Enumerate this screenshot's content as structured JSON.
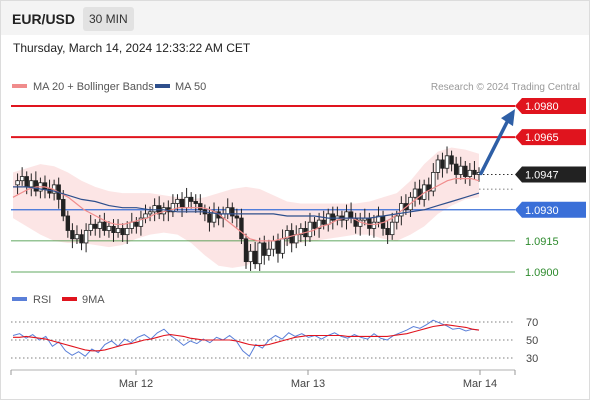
{
  "header": {
    "symbol": "EUR/USD",
    "timeframe": "30 MIN",
    "timestamp": "Thursday, March 14, 2024 12:33:22 AM CET"
  },
  "legend": {
    "items": [
      {
        "label": "MA 20 + Bollinger Bands",
        "color": "#f08c8c"
      },
      {
        "label": "MA 50",
        "color": "#2e4f8c"
      }
    ],
    "source": "Research © 2024 Trading Central"
  },
  "chart_data": [
    {
      "type": "candlestick",
      "title": "",
      "x_ticks": [
        "Mar 12",
        "Mar 13",
        "Mar 14"
      ],
      "ylim": [
        1.0895,
        1.0985
      ],
      "current_price": "1.0947",
      "levels": [
        {
          "value": "1.0980",
          "kind": "resistance",
          "color": "#e0141e"
        },
        {
          "value": "1.0965",
          "kind": "resistance",
          "color": "#e0141e"
        },
        {
          "value": "1.0930",
          "kind": "pivot",
          "color": "#3a6fd8"
        },
        {
          "value": "1.0915",
          "kind": "support",
          "color": "#2e8b2e"
        },
        {
          "value": "1.0900",
          "kind": "support",
          "color": "#2e8b2e"
        }
      ],
      "prices": [
        1.0942,
        1.0944,
        1.0946,
        1.0941,
        1.0944,
        1.0939,
        1.0943,
        1.094,
        1.0938,
        1.0942,
        1.0935,
        1.0927,
        1.092,
        1.0916,
        1.0918,
        1.0914,
        1.092,
        1.0923,
        1.0921,
        1.0924,
        1.092,
        1.0922,
        1.0919,
        1.0921,
        1.0918,
        1.0921,
        1.0924,
        1.0922,
        1.0926,
        1.0928,
        1.0929,
        1.0932,
        1.0928,
        1.0931,
        1.0929,
        1.0933,
        1.0935,
        1.0931,
        1.0936,
        1.0934,
        1.0933,
        1.093,
        1.0928,
        1.0924,
        1.0929,
        1.0926,
        1.0928,
        1.0931,
        1.0927,
        1.0926,
        1.0916,
        1.0905,
        1.091,
        1.0904,
        1.0914,
        1.0908,
        1.0911,
        1.0915,
        1.0909,
        1.0916,
        1.092,
        1.0914,
        1.0918,
        1.0921,
        1.0917,
        1.0924,
        1.0921,
        1.0925,
        1.0923,
        1.0928,
        1.0925,
        1.0927,
        1.0925,
        1.0929,
        1.0926,
        1.0922,
        1.0925,
        1.0926,
        1.0921,
        1.0924,
        1.0927,
        1.0921,
        1.0918,
        1.0924,
        1.0927,
        1.0933,
        1.093,
        1.0936,
        1.094,
        1.0935,
        1.0942,
        1.0939,
        1.0948,
        1.0954,
        1.095,
        1.0956,
        1.0952,
        1.0947,
        1.0951,
        1.0946,
        1.0949,
        1.0947,
        1.0948
      ],
      "ma20": [
        1.0936,
        1.0938,
        1.094,
        1.0941,
        1.0941,
        1.094,
        1.0938,
        1.0936,
        1.0933,
        1.093,
        1.0928,
        1.0926,
        1.0924,
        1.0923,
        1.0923,
        1.0924,
        1.0925,
        1.0926,
        1.0928,
        1.0929,
        1.093,
        1.0931,
        1.0931,
        1.0931,
        1.0931,
        1.093,
        1.0928,
        1.0925,
        1.0922,
        1.0919,
        1.0916,
        1.0915,
        1.0915,
        1.0915,
        1.0916,
        1.0917,
        1.0918,
        1.0919,
        1.092,
        1.0922,
        1.0923,
        1.0925,
        1.0926,
        1.0926,
        1.0924,
        1.0923,
        1.0923,
        1.0924,
        1.0926,
        1.0929,
        1.0932,
        1.0935,
        1.0938,
        1.094,
        1.0942,
        1.0944,
        1.0945,
        1.0945,
        1.0945,
        1.0944
      ],
      "ma50": [
        1.0941,
        1.0941,
        1.094,
        1.0939,
        1.0937,
        1.0935,
        1.0934,
        1.0932,
        1.0931,
        1.0931,
        1.093,
        1.093,
        1.0929,
        1.0929,
        1.0929,
        1.0928,
        1.0928,
        1.0928,
        1.0928,
        1.0928,
        1.0927,
        1.0927,
        1.0927,
        1.0926,
        1.0926,
        1.0926,
        1.0926,
        1.0927,
        1.0928,
        1.0929,
        1.093,
        1.0932,
        1.0934,
        1.0936,
        1.0938
      ],
      "bb_upper": [
        1.0948,
        1.095,
        1.0952,
        1.0951,
        1.0948,
        1.0944,
        1.0941,
        1.0939,
        1.0938,
        1.0938,
        1.0938,
        1.0937,
        1.0936,
        1.0935,
        1.0936,
        1.0938,
        1.094,
        1.0941,
        1.094,
        1.0937,
        1.0934,
        1.0933,
        1.0933,
        1.0933,
        1.0933,
        1.0933,
        1.0934,
        1.0936,
        1.0938,
        1.0944,
        1.0952,
        1.0958,
        1.096,
        1.0959,
        1.0957
      ],
      "bb_lower": [
        1.0926,
        1.0922,
        1.0918,
        1.0915,
        1.0914,
        1.0914,
        1.0913,
        1.0912,
        1.0913,
        1.0916,
        1.0918,
        1.0919,
        1.0918,
        1.0914,
        1.0908,
        1.0903,
        1.0902,
        1.0903,
        1.0907,
        1.0911,
        1.0913,
        1.0914,
        1.0915,
        1.0916,
        1.0917,
        1.0918,
        1.0918,
        1.0916,
        1.0915,
        1.0918,
        1.0922,
        1.0928,
        1.0932,
        1.0935,
        1.0936
      ],
      "forecast_target": 1.0978
    },
    {
      "type": "line",
      "legend": [
        "RSI",
        "9MA"
      ],
      "ylim": [
        20,
        80
      ],
      "y_ticks": [
        "70",
        "50",
        "30"
      ],
      "guide_levels": [
        70,
        50,
        30
      ],
      "rsi": [
        55,
        57,
        52,
        56,
        50,
        54,
        43,
        48,
        38,
        33,
        37,
        32,
        40,
        36,
        45,
        49,
        43,
        51,
        47,
        53,
        56,
        51,
        58,
        62,
        55,
        50,
        44,
        49,
        46,
        51,
        47,
        53,
        50,
        55,
        49,
        38,
        32,
        45,
        41,
        50,
        55,
        51,
        58,
        54,
        57,
        53,
        55,
        51,
        55,
        58,
        54,
        52,
        56,
        53,
        51,
        57,
        52,
        50,
        55,
        58,
        61,
        65,
        63,
        67,
        72,
        69,
        66,
        62,
        63,
        60,
        62,
        61
      ],
      "ma9": [
        53,
        53,
        54,
        53,
        52,
        51,
        49,
        47,
        45,
        43,
        41,
        39,
        38,
        38,
        39,
        41,
        43,
        45,
        46,
        48,
        50,
        51,
        53,
        55,
        56,
        55,
        54,
        52,
        51,
        50,
        50,
        50,
        50,
        50,
        49,
        47,
        45,
        44,
        44,
        45,
        47,
        49,
        51,
        53,
        54,
        55,
        55,
        55,
        55,
        55,
        55,
        54,
        54,
        54,
        54,
        54,
        54,
        54,
        55,
        56,
        57,
        59,
        61,
        63,
        65,
        66,
        67,
        66,
        65,
        64,
        62,
        61
      ]
    }
  ]
}
